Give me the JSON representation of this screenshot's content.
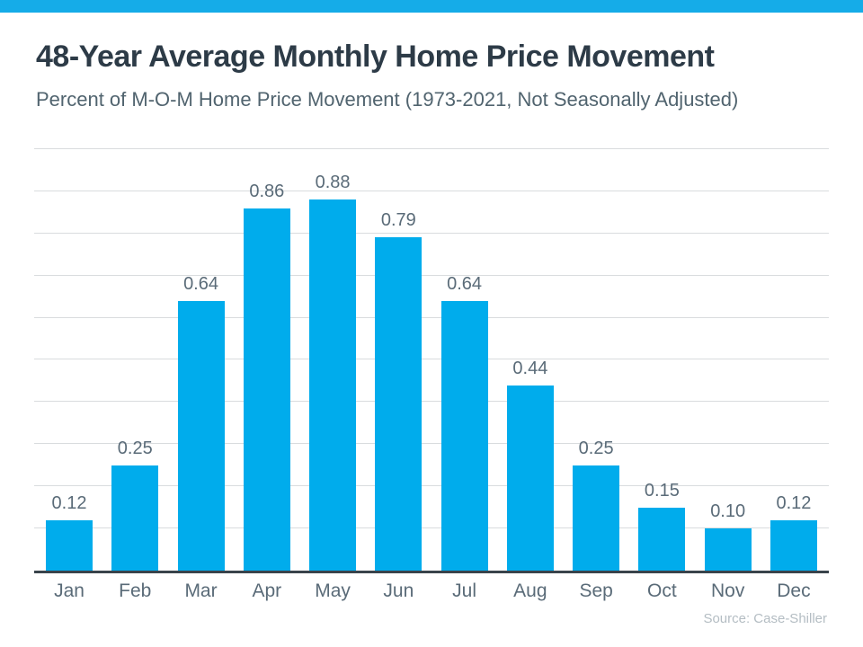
{
  "page": {
    "title": "48-Year Average Monthly Home Price Movement",
    "subtitle": "Percent of M-O-M Home Price Movement (1973-2021, Not Seasonally Adjusted)",
    "source": "Source: Case-Shiller",
    "accent_color": "#15ACE8",
    "title_color": "#2d3b47",
    "subtitle_color": "#51646f"
  },
  "chart_data": {
    "type": "bar",
    "title": "48-Year Average Monthly Home Price Movement",
    "subtitle": "Percent of M-O-M Home Price Movement (1973-2021, Not Seasonally Adjusted)",
    "categories": [
      "Jan",
      "Feb",
      "Mar",
      "Apr",
      "May",
      "Jun",
      "Jul",
      "Aug",
      "Sep",
      "Oct",
      "Nov",
      "Dec"
    ],
    "values": [
      0.12,
      0.25,
      0.64,
      0.86,
      0.88,
      0.79,
      0.64,
      0.44,
      0.25,
      0.15,
      0.1,
      0.12
    ],
    "value_labels": [
      "0.12",
      "0.25",
      "0.64",
      "0.86",
      "0.88",
      "0.79",
      "0.64",
      "0.44",
      "0.25",
      "0.15",
      "0.10",
      "0.12"
    ],
    "xlabel": "",
    "ylabel": "",
    "ylim": [
      0,
      1.0
    ],
    "grid": "horizontal gridlines every 0.1, no y tick labels",
    "gridline_color": "#d9dcde",
    "axis_color": "#39434b",
    "bar_color": "#00ACEC",
    "label_color": "#5a6b78",
    "legend": "none",
    "source": "Source: Case-Shiller"
  }
}
